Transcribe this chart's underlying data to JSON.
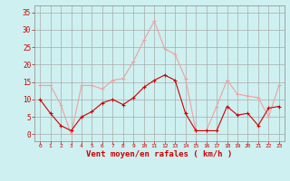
{
  "x": [
    0,
    1,
    2,
    3,
    4,
    5,
    6,
    7,
    8,
    9,
    10,
    11,
    12,
    13,
    14,
    15,
    16,
    17,
    18,
    19,
    20,
    21,
    22,
    23
  ],
  "wind_avg": [
    10,
    6,
    2.5,
    1,
    5,
    6.5,
    9,
    10,
    8.5,
    10.5,
    13.5,
    15.5,
    17,
    15.5,
    6,
    1,
    1,
    1,
    8,
    5.5,
    6,
    2.5,
    7.5,
    8
  ],
  "wind_gust": [
    14,
    14,
    8.5,
    0,
    14,
    14,
    13,
    15.5,
    16,
    21,
    27,
    32.5,
    24.5,
    23,
    16,
    1,
    1,
    8,
    15.5,
    11.5,
    11,
    10.5,
    5,
    14
  ],
  "bg_color": "#cef0f0",
  "grid_color": "#aaaaaa",
  "line_avg_color": "#cc0000",
  "line_gust_color": "#f0a0a0",
  "xlabel": "Vent moyen/en rafales ( km/h )",
  "xlabel_color": "#cc0000",
  "tick_color": "#cc0000",
  "yticks": [
    0,
    5,
    10,
    15,
    20,
    25,
    30,
    35
  ],
  "xticks": [
    0,
    1,
    2,
    3,
    4,
    5,
    6,
    7,
    8,
    9,
    10,
    11,
    12,
    13,
    14,
    15,
    16,
    17,
    18,
    19,
    20,
    21,
    22,
    23
  ],
  "ylim": [
    -2,
    37
  ],
  "xlim": [
    -0.5,
    23.5
  ]
}
